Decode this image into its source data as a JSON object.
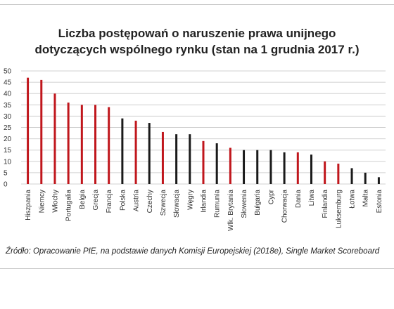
{
  "title_line1": "Liczba postępowań o naruszenie prawa unijnego",
  "title_line2": "dotyczących wspólnego rynku (stan na 1 grudnia 2017 r.)",
  "source": "Źródło: Opracowanie PIE, na podstawie danych Komisji Europejskiej (2018e), Single Market Scoreboard",
  "colors": {
    "highlight": "#c0161c",
    "other": "#1a1a1a",
    "grid": "#d0d0d0"
  },
  "chart_data": {
    "type": "bar",
    "title": "Liczba postępowań o naruszenie prawa unijnego dotyczących wspólnego rynku (stan na 1 grudnia 2017 r.)",
    "xlabel": "",
    "ylabel": "",
    "ylim": [
      0,
      50
    ],
    "yticks": [
      0,
      5,
      10,
      15,
      20,
      25,
      30,
      35,
      40,
      45,
      50
    ],
    "grid": true,
    "categories": [
      "Hiszpania",
      "Niemcy",
      "Włochy",
      "Portugalia",
      "Belgia",
      "Grecja",
      "Francja",
      "Polska",
      "Austria",
      "Czechy",
      "Szwecja",
      "Słowacja",
      "Węgry",
      "Irlandia",
      "Rumunia",
      "Wlk. Brytania",
      "Słowenia",
      "Bułgaria",
      "Cypr",
      "Chorwacja",
      "Dania",
      "Litwa",
      "Finlandia",
      "Luksemburg",
      "Łotwa",
      "Malta",
      "Estonia"
    ],
    "values": [
      47,
      46,
      40,
      36,
      35,
      35,
      34,
      29,
      28,
      27,
      23,
      22,
      22,
      19,
      18,
      16,
      15,
      15,
      15,
      14,
      14,
      13,
      10,
      9,
      7,
      5,
      3
    ],
    "bar_colors": [
      "#c0161c",
      "#c0161c",
      "#c0161c",
      "#c0161c",
      "#c0161c",
      "#c0161c",
      "#c0161c",
      "#1a1a1a",
      "#c0161c",
      "#1a1a1a",
      "#c0161c",
      "#1a1a1a",
      "#1a1a1a",
      "#c0161c",
      "#1a1a1a",
      "#c0161c",
      "#1a1a1a",
      "#1a1a1a",
      "#1a1a1a",
      "#1a1a1a",
      "#c0161c",
      "#1a1a1a",
      "#c0161c",
      "#c0161c",
      "#1a1a1a",
      "#1a1a1a",
      "#1a1a1a"
    ]
  }
}
